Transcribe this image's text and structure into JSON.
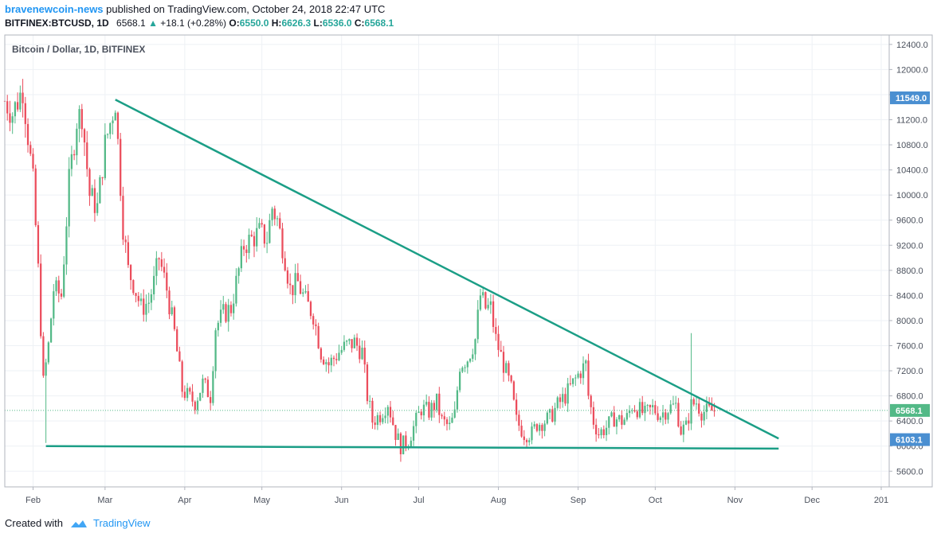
{
  "header": {
    "author": "bravenewcoin-news",
    "published_text": "published on TradingView.com, October 24, 2018 22:47 UTC",
    "symbol": "BITFINEX:BTCUSD, 1D",
    "last": "6568.1",
    "change_arrow": "▲",
    "change": "+18.1 (+0.28%)",
    "o_label": "O:",
    "o_value": "6550.0",
    "h_label": "H:",
    "h_value": "6626.3",
    "l_label": "L:",
    "l_value": "6536.0",
    "c_label": "C:",
    "c_value": "6568.1"
  },
  "footer": {
    "created_with": "Created with",
    "brand": "TradingView",
    "logo_icon": "tradingview-cloud-icon"
  },
  "colors": {
    "up": "#53b987",
    "down": "#eb4d5c",
    "trendline": "#1b9e86",
    "axis_text": "#4c525e",
    "grid": "#eef1f5",
    "price_tag": "#4a8fd1"
  },
  "chart_data": {
    "type": "candlestick",
    "title": "Bitcoin / Dollar, 1D, BITFINEX",
    "x_ticks": [
      "Feb",
      "Mar",
      "Apr",
      "May",
      "Jun",
      "Jul",
      "Aug",
      "Sep",
      "Oct",
      "Nov",
      "Dec",
      "201"
    ],
    "y_ticks": [
      5600,
      6000,
      6400,
      6800,
      7200,
      7600,
      8000,
      8400,
      8800,
      9200,
      9600,
      10000,
      10400,
      10800,
      11200,
      11600,
      12000,
      12400
    ],
    "y_tick_labels": [
      "5600.0",
      "6000.0",
      "6400.0",
      "6800.0",
      "7200.0",
      "7600.0",
      "8000.0",
      "8400.0",
      "8800.0",
      "9200.0",
      "9600.0",
      "10000.0",
      "10400.0",
      "10800.0",
      "11200.0",
      "11600.0",
      "12000.0",
      "12400.0"
    ],
    "ylim": [
      5350,
      12550
    ],
    "price_labels": [
      {
        "value": 11549.0,
        "text": "11549.0"
      },
      {
        "value": 6568.1,
        "text": "6568.1"
      },
      {
        "value": 6103.1,
        "text": "6103.1"
      }
    ],
    "trendlines": [
      {
        "name": "descending-resistance",
        "points": [
          [
            "2018-03-05",
            11520
          ],
          [
            "2018-11-18",
            6120
          ]
        ]
      },
      {
        "name": "horizontal-support",
        "points": [
          [
            "2018-02-06",
            6000
          ],
          [
            "2018-11-18",
            5960
          ]
        ]
      }
    ],
    "date_range": [
      "2018-01-21",
      "2018-12-31"
    ],
    "close_path": [
      [
        "2018-01-21",
        11500
      ],
      [
        "2018-01-24",
        11300
      ],
      [
        "2018-01-28",
        11700
      ],
      [
        "2018-02-01",
        10200
      ],
      [
        "2018-02-03",
        8800
      ],
      [
        "2018-02-05",
        7000
      ],
      [
        "2018-02-07",
        7600
      ],
      [
        "2018-02-09",
        8500
      ],
      [
        "2018-02-12",
        8400
      ],
      [
        "2018-02-15",
        10200
      ],
      [
        "2018-02-18",
        11200
      ],
      [
        "2018-02-20",
        11300
      ],
      [
        "2018-02-23",
        10000
      ],
      [
        "2018-02-26",
        9800
      ],
      [
        "2018-03-01",
        10800
      ],
      [
        "2018-03-05",
        11500
      ],
      [
        "2018-03-08",
        9500
      ],
      [
        "2018-03-10",
        8800
      ],
      [
        "2018-03-12",
        8600
      ],
      [
        "2018-03-15",
        8200
      ],
      [
        "2018-03-18",
        8300
      ],
      [
        "2018-03-20",
        8600
      ],
      [
        "2018-03-22",
        9000
      ],
      [
        "2018-03-25",
        8500
      ],
      [
        "2018-03-28",
        7800
      ],
      [
        "2018-03-31",
        6900
      ],
      [
        "2018-04-02",
        6800
      ],
      [
        "2018-04-05",
        6700
      ],
      [
        "2018-04-08",
        7000
      ],
      [
        "2018-04-11",
        6800
      ],
      [
        "2018-04-13",
        7900
      ],
      [
        "2018-04-16",
        8100
      ],
      [
        "2018-04-19",
        8200
      ],
      [
        "2018-04-22",
        8800
      ],
      [
        "2018-04-24",
        9200
      ],
      [
        "2018-04-27",
        9300
      ],
      [
        "2018-04-30",
        9400
      ],
      [
        "2018-05-03",
        9300
      ],
      [
        "2018-05-05",
        9800
      ],
      [
        "2018-05-07",
        9600
      ],
      [
        "2018-05-10",
        9000
      ],
      [
        "2018-05-12",
        8500
      ],
      [
        "2018-05-15",
        8600
      ],
      [
        "2018-05-18",
        8300
      ],
      [
        "2018-05-21",
        8100
      ],
      [
        "2018-05-24",
        7500
      ],
      [
        "2018-05-27",
        7300
      ],
      [
        "2018-05-31",
        7500
      ],
      [
        "2018-06-03",
        7600
      ],
      [
        "2018-06-06",
        7650
      ],
      [
        "2018-06-09",
        7500
      ],
      [
        "2018-06-11",
        6800
      ],
      [
        "2018-06-13",
        6400
      ],
      [
        "2018-06-16",
        6500
      ],
      [
        "2018-06-19",
        6700
      ],
      [
        "2018-06-22",
        6200
      ],
      [
        "2018-06-24",
        6000
      ],
      [
        "2018-06-27",
        6100
      ],
      [
        "2018-06-29",
        6300
      ],
      [
        "2018-07-02",
        6600
      ],
      [
        "2018-07-05",
        6550
      ],
      [
        "2018-07-08",
        6700
      ],
      [
        "2018-07-10",
        6400
      ],
      [
        "2018-07-13",
        6300
      ],
      [
        "2018-07-15",
        6500
      ],
      [
        "2018-07-17",
        7300
      ],
      [
        "2018-07-20",
        7400
      ],
      [
        "2018-07-23",
        7700
      ],
      [
        "2018-07-25",
        8400
      ],
      [
        "2018-07-27",
        8200
      ],
      [
        "2018-07-29",
        8200
      ],
      [
        "2018-07-31",
        7700
      ],
      [
        "2018-08-03",
        7300
      ],
      [
        "2018-08-06",
        6900
      ],
      [
        "2018-08-08",
        6400
      ],
      [
        "2018-08-11",
        6200
      ],
      [
        "2018-08-14",
        6200
      ],
      [
        "2018-08-16",
        6350
      ],
      [
        "2018-08-19",
        6400
      ],
      [
        "2018-08-21",
        6450
      ],
      [
        "2018-08-24",
        6650
      ],
      [
        "2018-08-27",
        6800
      ],
      [
        "2018-08-30",
        7000
      ],
      [
        "2018-09-02",
        7200
      ],
      [
        "2018-09-04",
        7300
      ],
      [
        "2018-09-05",
        6800
      ],
      [
        "2018-09-07",
        6400
      ],
      [
        "2018-09-09",
        6200
      ],
      [
        "2018-09-12",
        6300
      ],
      [
        "2018-09-15",
        6450
      ],
      [
        "2018-09-18",
        6400
      ],
      [
        "2018-09-20",
        6450
      ],
      [
        "2018-09-22",
        6650
      ],
      [
        "2018-09-24",
        6600
      ],
      [
        "2018-09-27",
        6500
      ],
      [
        "2018-09-30",
        6600
      ],
      [
        "2018-10-03",
        6500
      ],
      [
        "2018-10-06",
        6600
      ],
      [
        "2018-10-09",
        6650
      ],
      [
        "2018-10-11",
        6250
      ],
      [
        "2018-10-13",
        6300
      ],
      [
        "2018-10-15",
        6650
      ],
      [
        "2018-10-17",
        6700
      ],
      [
        "2018-10-19",
        6550
      ],
      [
        "2018-10-21",
        6550
      ],
      [
        "2018-10-24",
        6568
      ]
    ],
    "wicks_extreme": [
      {
        "date": "2018-02-06",
        "low": 6050
      },
      {
        "date": "2018-10-15",
        "high": 7800
      },
      {
        "date": "2018-06-24",
        "low": 5750
      }
    ]
  }
}
